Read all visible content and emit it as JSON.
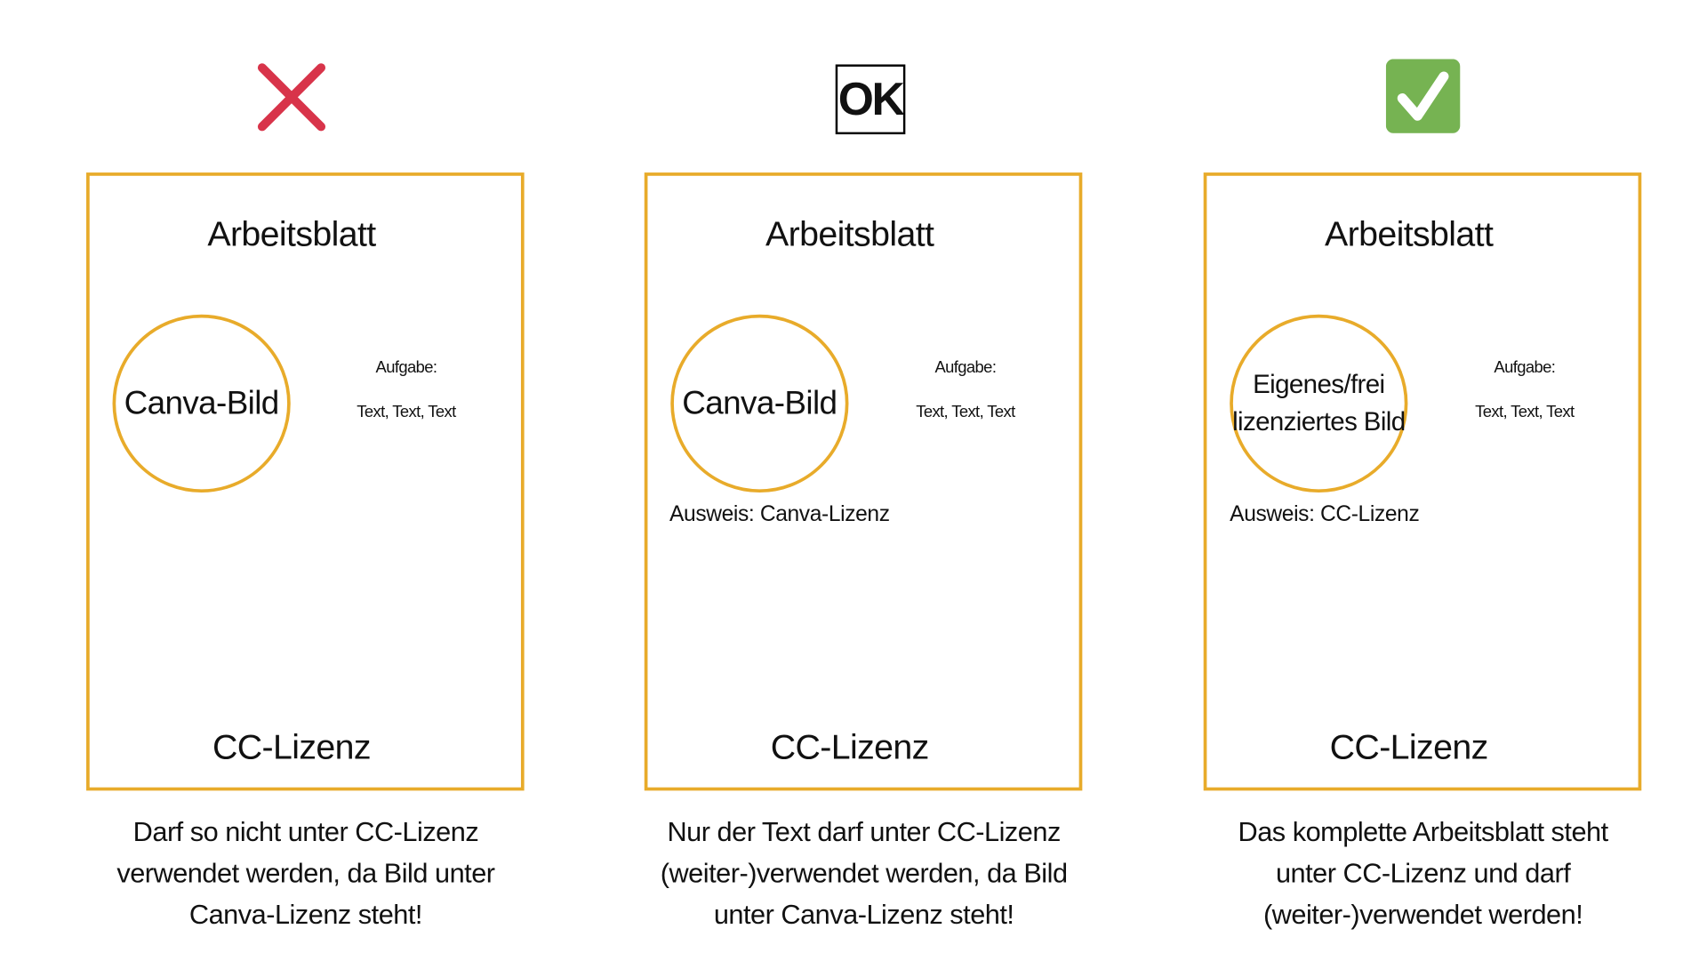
{
  "colors": {
    "frame": "#e8ab2a",
    "cross": "#d8344a",
    "check": "#76b352"
  },
  "columns": [
    {
      "icon": "cross-icon",
      "title": "Arbeitsblatt",
      "image_label": [
        "Canva-Bild"
      ],
      "task_label": "Aufgabe:",
      "task_text": "Text, Text, Text",
      "license_note": "",
      "footer": "CC-Lizenz",
      "caption": [
        "Darf so nicht unter CC-Lizenz",
        "verwendet werden, da Bild unter",
        "Canva-Lizenz steht!"
      ]
    },
    {
      "icon": "ok-icon",
      "icon_text": "OK",
      "title": "Arbeitsblatt",
      "image_label": [
        "Canva-Bild"
      ],
      "task_label": "Aufgabe:",
      "task_text": "Text, Text, Text",
      "license_note": "Ausweis: Canva-Lizenz",
      "footer": "CC-Lizenz",
      "caption": [
        "Nur der Text darf unter CC-Lizenz",
        "(weiter-)verwendet werden, da Bild",
        "unter Canva-Lizenz steht!"
      ]
    },
    {
      "icon": "check-icon",
      "title": "Arbeitsblatt",
      "image_label": [
        "Eigenes/frei",
        "lizenziertes Bild"
      ],
      "task_label": "Aufgabe:",
      "task_text": "Text, Text, Text",
      "license_note": "Ausweis: CC-Lizenz",
      "footer": "CC-Lizenz",
      "caption": [
        "Das komplette Arbeitsblatt steht",
        "unter CC-Lizenz und darf",
        "(weiter-)verwendet werden!"
      ]
    }
  ]
}
